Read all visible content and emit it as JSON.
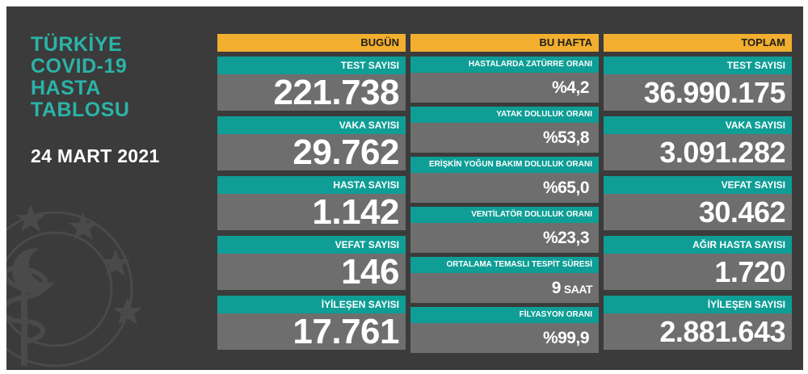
{
  "title_lines": [
    "TÜRKİYE",
    "COVID-19",
    "HASTA",
    "TABLOSU"
  ],
  "date": "24 MART 2021",
  "colors": {
    "background": "#3b3b3b",
    "header": "#f2ae2e",
    "label": "#0e9e96",
    "value": "#6e6e6e",
    "title": "#2bb3a8"
  },
  "today": {
    "header": "BUGÜN",
    "items": [
      {
        "label": "TEST SAYISI",
        "value": "221.738"
      },
      {
        "label": "VAKA SAYISI",
        "value": "29.762"
      },
      {
        "label": "HASTA SAYISI",
        "value": "1.142"
      },
      {
        "label": "VEFAT SAYISI",
        "value": "146"
      },
      {
        "label": "İYİLEŞEN SAYISI",
        "value": "17.761"
      }
    ]
  },
  "week": {
    "header": "BU HAFTA",
    "items": [
      {
        "label": "HASTALARDA ZATÜRRE ORANI",
        "value": "%4,2",
        "unit": ""
      },
      {
        "label": "YATAK DOLULUK ORANI",
        "value": "%53,8",
        "unit": ""
      },
      {
        "label": "ERİŞKİN YOĞUN BAKIM DOLULUK ORANI",
        "value": "%65,0",
        "unit": ""
      },
      {
        "label": "VENTİLATÖR DOLULUK ORANI",
        "value": "%23,3",
        "unit": ""
      },
      {
        "label": "ORTALAMA TEMASLI TESPİT SÜRESİ",
        "value": "9",
        "unit": "SAAT"
      },
      {
        "label": "FİLYASYON ORANI",
        "value": "%99,9",
        "unit": ""
      }
    ]
  },
  "total": {
    "header": "TOPLAM",
    "items": [
      {
        "label": "TEST SAYISI",
        "value": "36.990.175"
      },
      {
        "label": "VAKA SAYISI",
        "value": "3.091.282"
      },
      {
        "label": "VEFAT SAYISI",
        "value": "30.462"
      },
      {
        "label": "AĞIR HASTA SAYISI",
        "value": "1.720"
      },
      {
        "label": "İYİLEŞEN SAYISI",
        "value": "2.881.643"
      }
    ]
  }
}
